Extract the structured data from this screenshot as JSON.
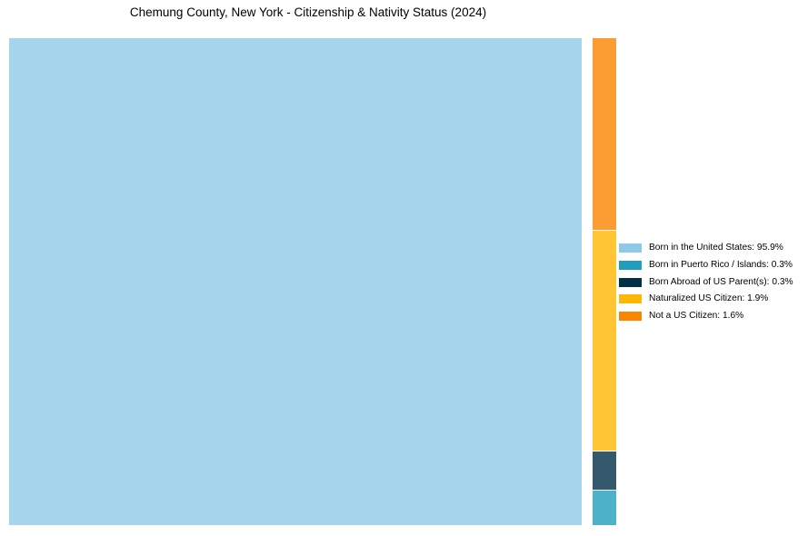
{
  "chart_data": {
    "type": "treemap",
    "title": "Chemung County, New York - Citizenship & Nativity Status (2024)",
    "categories": [
      "Born in the United States",
      "Born in Puerto Rico / Islands",
      "Born Abroad of US Parent(s)",
      "Naturalized US Citizen",
      "Not a US Citizen"
    ],
    "values": [
      95.9,
      0.3,
      0.3,
      1.9,
      1.6
    ],
    "unit": "%",
    "colors": [
      "#8ECAE6",
      "#219EBC",
      "#023047",
      "#FFB703",
      "#FB8500"
    ],
    "fill_colors": [
      "#A5D5EB",
      "#4DB1C9",
      "#35596C",
      "#FFC535",
      "#FC9D33"
    ],
    "fill_opacity": 0.8,
    "background_color": "#FFFFFF",
    "legend_position": "right",
    "layout": "single large tile on left for largest category; narrow right column stacked top-to-bottom: Not a US Citizen, Naturalized US Citizen, Born Abroad of US Parent(s), Born in Puerto Rico / Islands"
  },
  "legend": {
    "items": [
      {
        "label": "Born in the United States: 95.9%",
        "color": "#8ECAE6"
      },
      {
        "label": "Born in Puerto Rico / Islands: 0.3%",
        "color": "#219EBC"
      },
      {
        "label": "Born Abroad of US Parent(s): 0.3%",
        "color": "#023047"
      },
      {
        "label": "Naturalized US Citizen: 1.9%",
        "color": "#FFB703"
      },
      {
        "label": "Not a US Citizen: 1.6%",
        "color": "#FB8500"
      }
    ]
  }
}
